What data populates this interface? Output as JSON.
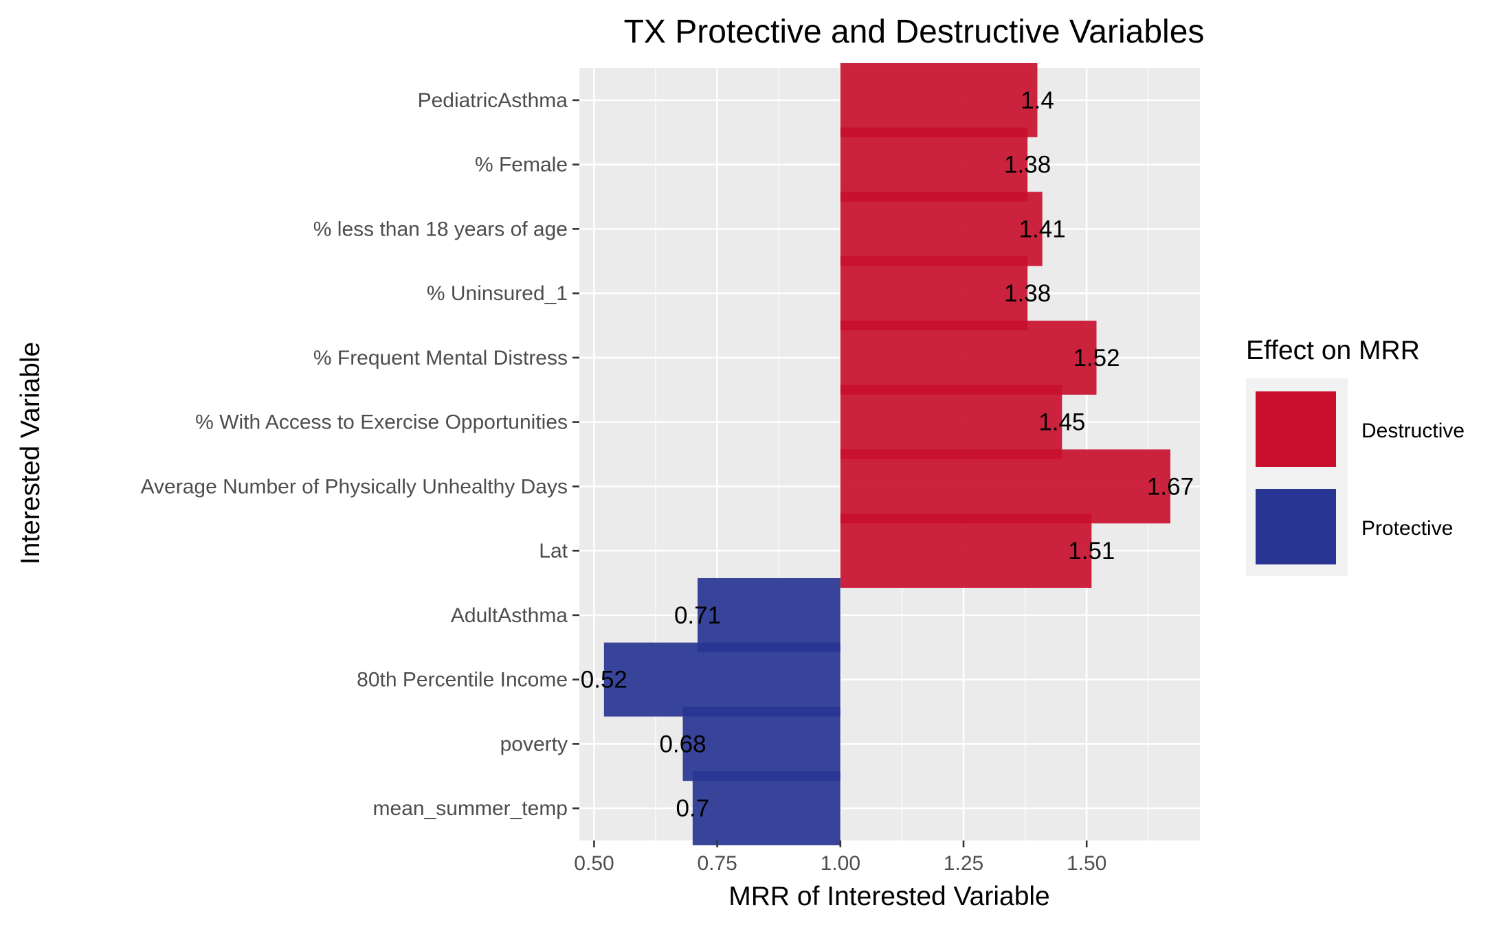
{
  "chart_data": {
    "type": "bar",
    "orientation": "horizontal",
    "title": "TX Protective and Destructive Variables",
    "xlabel": "MRR of Interested Variable",
    "ylabel": "Interested Variable",
    "baseline": 1.0,
    "xlim": [
      0.47,
      1.73
    ],
    "x_ticks": [
      0.5,
      0.75,
      1.0,
      1.25,
      1.5
    ],
    "x_tick_labels": [
      "0.50",
      "0.75",
      "1.00",
      "1.25",
      "1.50"
    ],
    "grid": true,
    "legend": {
      "title": "Effect on MRR",
      "position": "right",
      "entries": [
        {
          "label": "Destructive",
          "color": "#c8102e"
        },
        {
          "label": "Protective",
          "color": "#283593"
        }
      ]
    },
    "categories": [
      "PediatricAsthma",
      "% Female",
      "% less than 18 years of age",
      "% Uninsured_1",
      "% Frequent Mental Distress",
      "% With Access to Exercise Opportunities",
      "Average Number of Physically Unhealthy Days",
      "Lat",
      "AdultAsthma",
      "80th Percentile Income",
      "poverty",
      "mean_summer_temp"
    ],
    "values": [
      1.4,
      1.38,
      1.41,
      1.38,
      1.52,
      1.45,
      1.67,
      1.51,
      0.71,
      0.52,
      0.68,
      0.7
    ],
    "value_labels": [
      "1.4",
      "1.38",
      "1.41",
      "1.38",
      "1.52",
      "1.45",
      "1.67",
      "1.51",
      "0.71",
      "0.52",
      "0.68",
      "0.7"
    ],
    "effects": [
      "Destructive",
      "Destructive",
      "Destructive",
      "Destructive",
      "Destructive",
      "Destructive",
      "Destructive",
      "Destructive",
      "Protective",
      "Protective",
      "Protective",
      "Protective"
    ]
  }
}
